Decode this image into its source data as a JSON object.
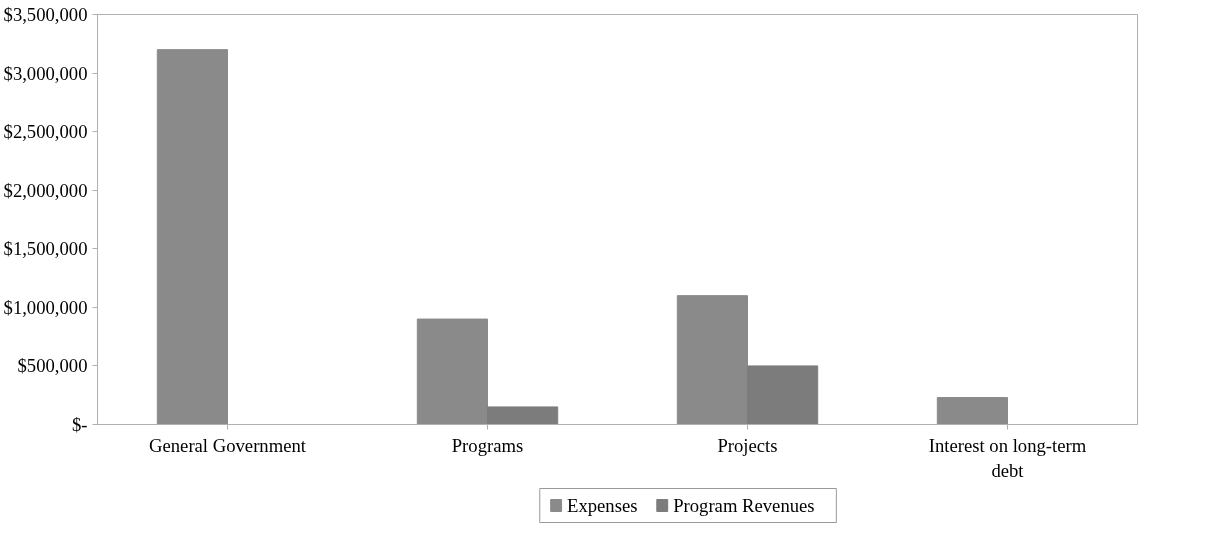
{
  "chart_data": {
    "type": "bar",
    "categories": [
      "General Government",
      "Programs",
      "Projects",
      "Interest on long-term debt"
    ],
    "series": [
      {
        "name": "Expenses",
        "color": "#8a8a8a",
        "values": [
          3200000,
          900000,
          1100000,
          230000
        ]
      },
      {
        "name": "Program Revenues",
        "color": "#7c7c7c",
        "values": [
          0,
          150000,
          500000,
          0
        ]
      }
    ],
    "ylim": [
      0,
      3500000
    ],
    "yticks": [
      {
        "value": 0,
        "label": "$-"
      },
      {
        "value": 500000,
        "label": "$500,000"
      },
      {
        "value": 1000000,
        "label": "$1,000,000"
      },
      {
        "value": 1500000,
        "label": "$1,500,000"
      },
      {
        "value": 2000000,
        "label": "$2,000,000"
      },
      {
        "value": 2500000,
        "label": "$2,500,000"
      },
      {
        "value": 3000000,
        "label": "$3,000,000"
      },
      {
        "value": 3500000,
        "label": "$3,500,000"
      }
    ],
    "grid": false,
    "legend": "bottom"
  }
}
